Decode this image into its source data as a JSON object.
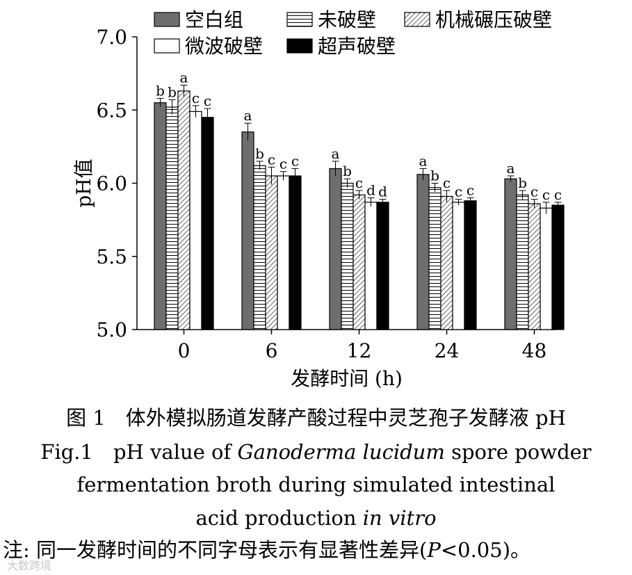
{
  "chart_data": {
    "type": "bar",
    "xlabel": "发酵时间 (h)",
    "ylabel": "pH值",
    "ylim": [
      5.0,
      7.0
    ],
    "yticks": [
      "5.0",
      "5.5",
      "6.0",
      "6.5",
      "7.0"
    ],
    "categories": [
      "0",
      "6",
      "12",
      "24",
      "48"
    ],
    "legend_position": "top",
    "series": [
      {
        "name": "空白组",
        "pattern": "solid-gray",
        "color": "#6e6e6e",
        "values": [
          6.55,
          6.35,
          6.1,
          6.06,
          6.03
        ],
        "errors": [
          0.03,
          0.06,
          0.05,
          0.04,
          0.02
        ],
        "letters": [
          "b",
          "a",
          "a",
          "a",
          "a"
        ]
      },
      {
        "name": "未破壁",
        "pattern": "horizontal-lines",
        "color": "#ffffff",
        "values": [
          6.52,
          6.12,
          6.0,
          5.97,
          5.92
        ],
        "errors": [
          0.05,
          0.03,
          0.03,
          0.03,
          0.03
        ],
        "letters": [
          "b",
          "b",
          "b",
          "b",
          "b"
        ]
      },
      {
        "name": "机械碾压破壁",
        "pattern": "diagonal-lines",
        "color": "#ffffff",
        "values": [
          6.63,
          6.05,
          5.92,
          5.91,
          5.86
        ],
        "errors": [
          0.04,
          0.06,
          0.03,
          0.04,
          0.03
        ],
        "letters": [
          "a",
          "c",
          "c",
          "c",
          "c"
        ]
      },
      {
        "name": "微波破壁",
        "pattern": "open",
        "color": "#ffffff",
        "values": [
          6.49,
          6.05,
          5.87,
          5.87,
          5.83
        ],
        "errors": [
          0.04,
          0.03,
          0.03,
          0.02,
          0.04
        ],
        "letters": [
          "c",
          "c",
          "d",
          "c",
          "c"
        ]
      },
      {
        "name": "超声破壁",
        "pattern": "solid-black",
        "color": "#000000",
        "values": [
          6.45,
          6.05,
          5.87,
          5.88,
          5.85
        ],
        "errors": [
          0.06,
          0.05,
          0.02,
          0.02,
          0.02
        ],
        "letters": [
          "c",
          "c",
          "d",
          "c",
          "c"
        ]
      }
    ]
  },
  "caption": {
    "zh": "图 1　体外模拟肠道发酵产酸过程中灵芝孢子发酵液 pH",
    "en_prefix": "Fig.1　pH value of ",
    "en_species": "Ganoderma lucidum",
    "en_suffix": " spore powder",
    "en_line2": "fermentation broth during simulated intestinal",
    "en_line3_prefix": "acid production ",
    "en_line3_italic": "in vitro"
  },
  "note": {
    "prefix": "注: 同一发酵时间的不同字母表示有显著性差异(",
    "p": "P",
    "suffix": "<0.05)。"
  },
  "watermark": "大数跨境"
}
